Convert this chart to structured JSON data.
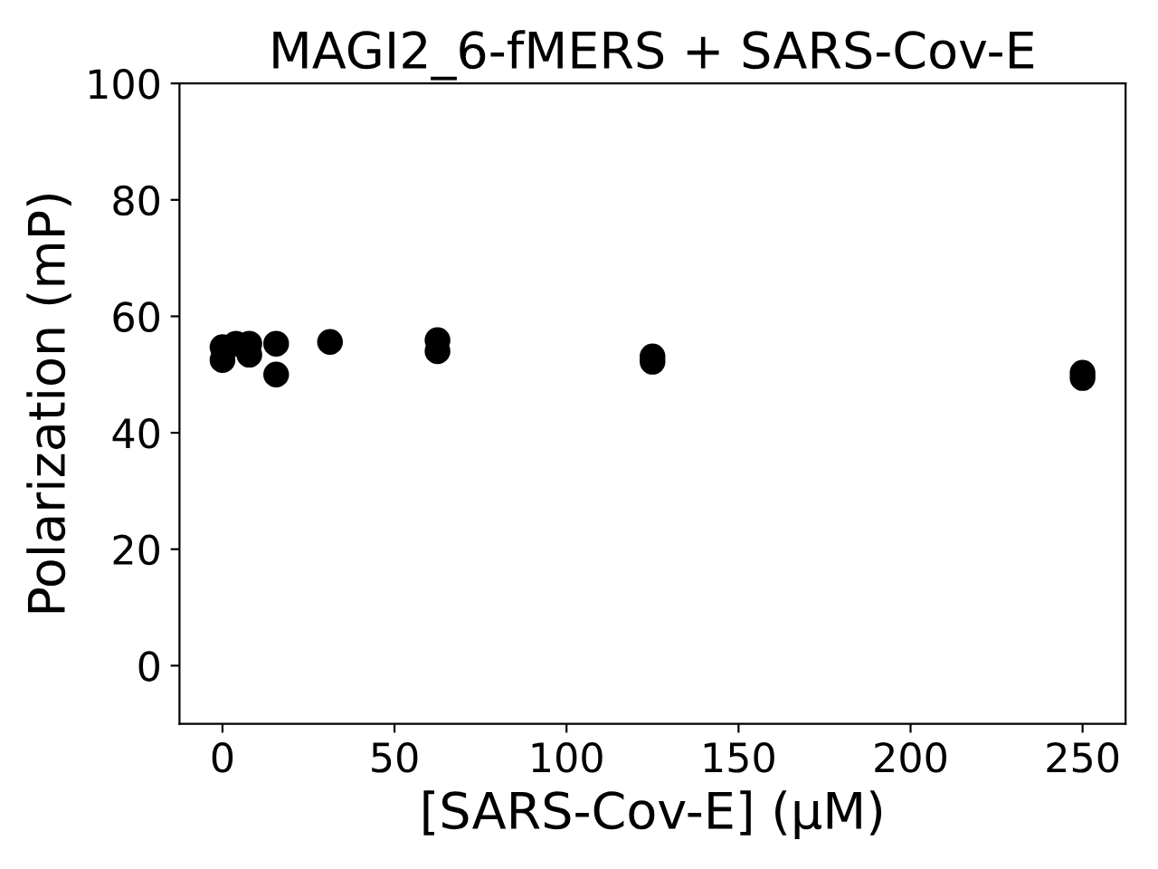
{
  "chart_data": {
    "type": "scatter",
    "title": "MAGI2_6-fMERS + SARS-Cov-E",
    "xlabel": "[SARS-Cov-E] (µM)",
    "ylabel": "Polarization (mP)",
    "series": [
      {
        "color": "#000000",
        "x": [
          0,
          0,
          3.9,
          7.8,
          7.8,
          15.6,
          15.6,
          31.25,
          62.5,
          62.5,
          125,
          125,
          250,
          250
        ],
        "values": [
          54.7,
          52.5,
          55.3,
          55.3,
          53.4,
          55.3,
          50,
          55.6,
          55.9,
          54,
          53.1,
          52.2,
          50.3,
          49.4
        ]
      }
    ],
    "marker": "circle",
    "grid": false,
    "legend": false,
    "xlim": [
      -12.5,
      262.5
    ],
    "ylim": [
      -10,
      100
    ],
    "xticks": [
      0,
      50,
      100,
      150,
      200,
      250
    ],
    "yticks": [
      0,
      20,
      40,
      60,
      80,
      100
    ]
  }
}
